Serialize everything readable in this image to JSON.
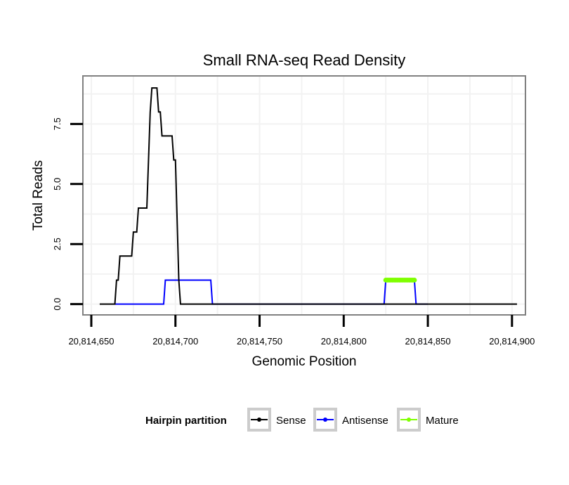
{
  "chart_data": {
    "type": "line",
    "title": "Small RNA-seq Read Density",
    "xlabel": "Genomic Position",
    "ylabel": "Total Reads",
    "xlim": [
      20814645,
      20814908
    ],
    "ylim": [
      -0.45,
      9.5
    ],
    "x_ticks": [
      20814650,
      20814700,
      20814750,
      20814800,
      20814850,
      20814900
    ],
    "x_tick_labels": [
      "20,814,650",
      "20,814,700",
      "20,814,750",
      "20,814,800",
      "20,814,850",
      "20,814,900"
    ],
    "y_ticks": [
      0,
      2.5,
      5,
      7.5
    ],
    "y_tick_labels": [
      "0.0",
      "2.5",
      "5.0",
      "7.5"
    ],
    "grid": true,
    "legend": {
      "title": "Hairpin partition",
      "position": "bottom",
      "entries": [
        {
          "label": "Sense",
          "color": "#000000"
        },
        {
          "label": "Antisense",
          "color": "#0000ff"
        },
        {
          "label": "Mature",
          "color": "#7fff00"
        }
      ]
    },
    "series": [
      {
        "name": "Sense",
        "color": "#000000",
        "points": [
          [
            20814655,
            0
          ],
          [
            20814664,
            0
          ],
          [
            20814665,
            1
          ],
          [
            20814666,
            1
          ],
          [
            20814667,
            2
          ],
          [
            20814674,
            2
          ],
          [
            20814675,
            3
          ],
          [
            20814677,
            3
          ],
          [
            20814678,
            4
          ],
          [
            20814683,
            4
          ],
          [
            20814684,
            6
          ],
          [
            20814685,
            8
          ],
          [
            20814686,
            9
          ],
          [
            20814689,
            9
          ],
          [
            20814690,
            8
          ],
          [
            20814691,
            8
          ],
          [
            20814692,
            7
          ],
          [
            20814698,
            7
          ],
          [
            20814699,
            6
          ],
          [
            20814700,
            6
          ],
          [
            20814702,
            1
          ],
          [
            20814703,
            0
          ],
          [
            20814903,
            0
          ]
        ]
      },
      {
        "name": "Antisense",
        "color": "#0000ff",
        "points": [
          [
            20814664,
            0
          ],
          [
            20814693,
            0
          ],
          [
            20814694,
            1
          ],
          [
            20814721,
            1
          ],
          [
            20814722,
            0
          ],
          [
            20814824,
            0
          ],
          [
            20814825,
            1
          ],
          [
            20814842,
            1
          ],
          [
            20814843,
            0
          ],
          [
            20814850,
            0
          ]
        ]
      },
      {
        "name": "Mature",
        "color": "#7fff00",
        "points": [
          [
            20814825,
            1
          ],
          [
            20814826,
            1
          ],
          [
            20814827,
            1
          ],
          [
            20814828,
            1
          ],
          [
            20814829,
            1
          ],
          [
            20814830,
            1
          ],
          [
            20814831,
            1
          ],
          [
            20814832,
            1
          ],
          [
            20814833,
            1
          ],
          [
            20814834,
            1
          ],
          [
            20814835,
            1
          ],
          [
            20814836,
            1
          ],
          [
            20814837,
            1
          ],
          [
            20814838,
            1
          ],
          [
            20814839,
            1
          ],
          [
            20814840,
            1
          ],
          [
            20814841,
            1
          ],
          [
            20814842,
            1
          ]
        ],
        "show_points": true
      }
    ]
  }
}
